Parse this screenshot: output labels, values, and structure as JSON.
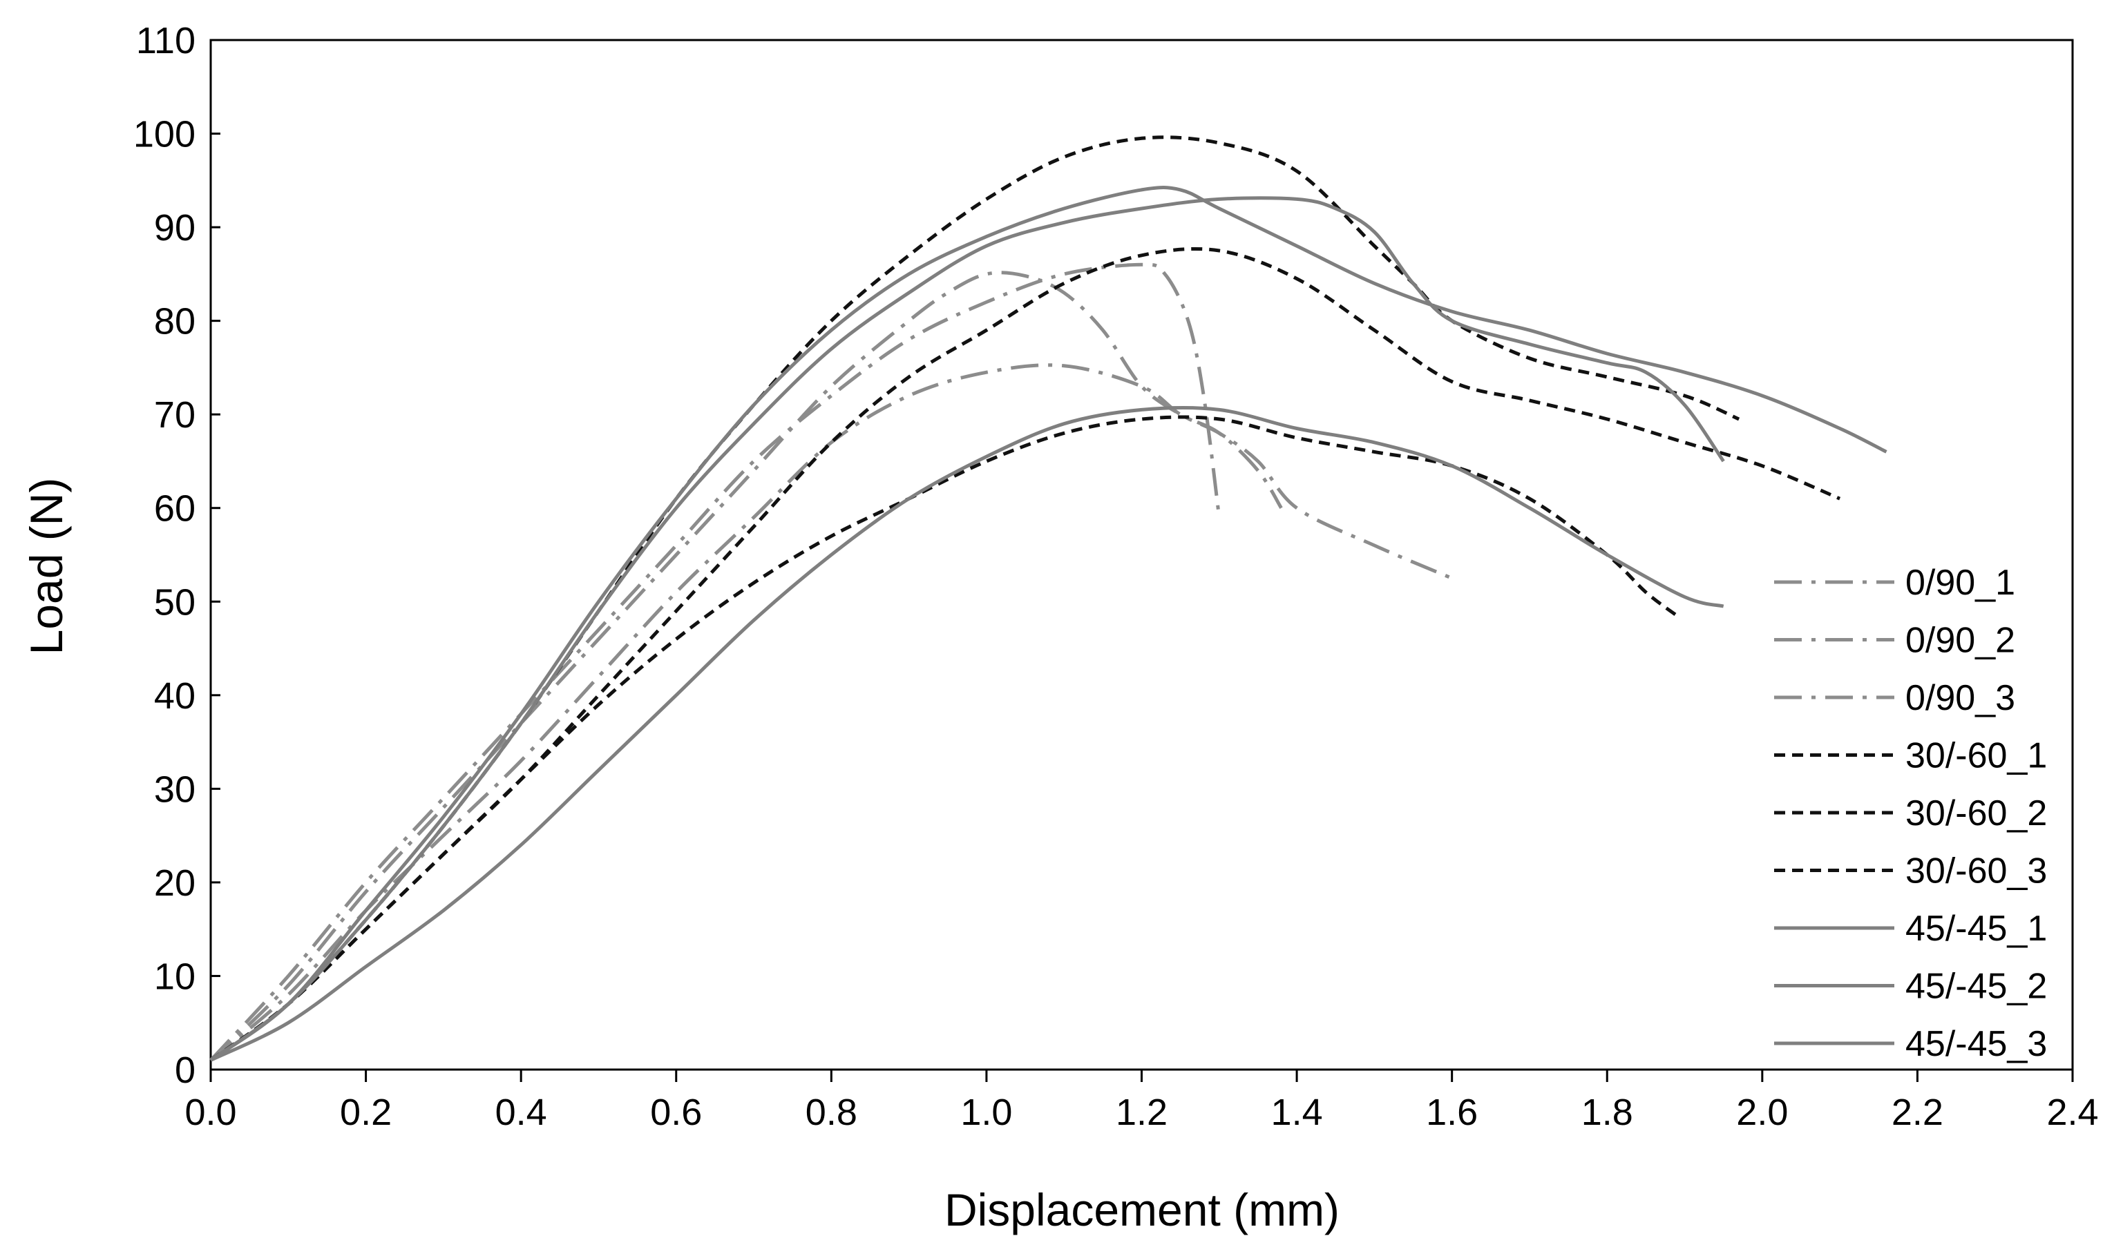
{
  "chart_data": {
    "type": "line",
    "title": "",
    "xlabel": "Displacement (mm)",
    "ylabel": "Load (N)",
    "xlim": [
      0,
      2.4
    ],
    "ylim": [
      0,
      110
    ],
    "xticks": [
      0.0,
      0.2,
      0.4,
      0.6,
      0.8,
      1.0,
      1.2,
      1.4,
      1.6,
      1.8,
      2.0,
      2.2,
      2.4
    ],
    "xtick_labels": [
      "0.0",
      "0.2",
      "0.4",
      "0.6",
      "0.8",
      "1.0",
      "1.2",
      "1.4",
      "1.6",
      "1.8",
      "2.0",
      "2.2",
      "2.4"
    ],
    "yticks": [
      0,
      10,
      20,
      30,
      40,
      50,
      60,
      70,
      80,
      90,
      100,
      110
    ],
    "ytick_labels": [
      "0",
      "10",
      "20",
      "30",
      "40",
      "50",
      "60",
      "70",
      "80",
      "90",
      "100",
      "110"
    ],
    "grid": false,
    "legend_position": "right",
    "series": [
      {
        "name": "0/90_1",
        "color": "#8c8c8c",
        "style": "dashdot",
        "x": [
          0.0,
          0.1,
          0.2,
          0.3,
          0.4,
          0.5,
          0.6,
          0.7,
          0.8,
          0.9,
          1.0,
          1.1,
          1.2,
          1.25,
          1.3,
          1.35,
          1.4,
          1.5,
          1.6
        ],
        "y": [
          1,
          8,
          17,
          25,
          33,
          42,
          51,
          59,
          67,
          72,
          74.5,
          75.2,
          73,
          70,
          68,
          65,
          60,
          56,
          52.5
        ]
      },
      {
        "name": "0/90_2",
        "color": "#8c8c8c",
        "style": "dashdot",
        "x": [
          0.0,
          0.1,
          0.2,
          0.3,
          0.4,
          0.5,
          0.6,
          0.7,
          0.8,
          0.9,
          0.95,
          1.0,
          1.05,
          1.1,
          1.15,
          1.2,
          1.25,
          1.3,
          1.35,
          1.38
        ],
        "y": [
          1,
          9,
          19,
          28,
          37,
          46,
          55,
          64,
          73,
          80,
          83,
          85,
          84.8,
          83,
          79,
          73,
          70,
          68,
          64,
          60
        ]
      },
      {
        "name": "0/90_3",
        "color": "#8c8c8c",
        "style": "dashdot",
        "x": [
          0.0,
          0.1,
          0.2,
          0.3,
          0.4,
          0.5,
          0.6,
          0.7,
          0.8,
          0.9,
          1.0,
          1.1,
          1.2,
          1.23,
          1.26,
          1.28,
          1.3
        ],
        "y": [
          1,
          10,
          20,
          29,
          38,
          47,
          56,
          65,
          72,
          78,
          82,
          85,
          86,
          85,
          80,
          72,
          59
        ]
      },
      {
        "name": "30/-60_1",
        "color": "#111111",
        "style": "dashed",
        "x": [
          0.0,
          0.1,
          0.2,
          0.3,
          0.4,
          0.5,
          0.6,
          0.7,
          0.8,
          0.9,
          1.0,
          1.1,
          1.2,
          1.3,
          1.4,
          1.5,
          1.55,
          1.6,
          1.7,
          1.8,
          1.9,
          1.97
        ],
        "y": [
          1,
          7,
          16,
          26,
          37,
          49,
          61,
          71,
          80,
          87,
          93,
          97.5,
          99.5,
          99,
          96,
          88,
          84,
          80,
          76,
          74,
          72,
          69.5
        ]
      },
      {
        "name": "30/-60_2",
        "color": "#111111",
        "style": "dashed",
        "x": [
          0.0,
          0.1,
          0.2,
          0.3,
          0.4,
          0.5,
          0.6,
          0.7,
          0.8,
          0.9,
          1.0,
          1.1,
          1.2,
          1.3,
          1.4,
          1.5,
          1.6,
          1.7,
          1.8,
          1.9,
          2.0,
          2.1
        ],
        "y": [
          1,
          7,
          15,
          23,
          31,
          40,
          49,
          58,
          67,
          74,
          79,
          84,
          87,
          87.5,
          84.5,
          79,
          73.5,
          71.5,
          69.5,
          67,
          64.5,
          61
        ]
      },
      {
        "name": "30/-60_3",
        "color": "#111111",
        "style": "dashed",
        "x": [
          0.0,
          0.1,
          0.2,
          0.3,
          0.4,
          0.5,
          0.6,
          0.7,
          0.8,
          0.9,
          1.0,
          1.1,
          1.2,
          1.3,
          1.4,
          1.5,
          1.6,
          1.7,
          1.8,
          1.85,
          1.89
        ],
        "y": [
          1,
          7,
          15,
          23,
          31,
          39,
          46,
          52,
          57,
          61,
          65,
          68,
          69.5,
          69.5,
          67.5,
          66,
          64.5,
          61,
          55,
          51,
          48.5
        ]
      },
      {
        "name": "45/-45_1",
        "color": "#7f7f7f",
        "style": "solid",
        "x": [
          0.0,
          0.1,
          0.2,
          0.3,
          0.4,
          0.5,
          0.6,
          0.7,
          0.8,
          0.9,
          1.0,
          1.1,
          1.2,
          1.25,
          1.3,
          1.4,
          1.5,
          1.6,
          1.7,
          1.8,
          1.9,
          2.0,
          2.1,
          2.16
        ],
        "y": [
          1,
          7,
          17,
          27,
          38,
          50,
          61,
          71,
          79,
          85,
          89,
          92,
          94,
          94,
          92,
          88,
          84,
          81,
          79,
          76.5,
          74.5,
          72,
          68.5,
          66
        ]
      },
      {
        "name": "45/-45_2",
        "color": "#7f7f7f",
        "style": "solid",
        "x": [
          0.0,
          0.1,
          0.2,
          0.3,
          0.4,
          0.5,
          0.6,
          0.7,
          0.8,
          0.9,
          1.0,
          1.1,
          1.2,
          1.3,
          1.4,
          1.45,
          1.5,
          1.55,
          1.6,
          1.7,
          1.8,
          1.85,
          1.9,
          1.95
        ],
        "y": [
          1,
          7,
          16,
          26,
          37,
          49,
          60,
          69,
          77,
          83,
          88,
          90.5,
          92,
          93,
          93,
          92,
          89.5,
          84,
          80,
          77.5,
          75.5,
          74.5,
          71,
          65
        ]
      },
      {
        "name": "45/-45_3",
        "color": "#7f7f7f",
        "style": "solid",
        "x": [
          0.0,
          0.1,
          0.2,
          0.3,
          0.4,
          0.5,
          0.6,
          0.7,
          0.8,
          0.9,
          1.0,
          1.1,
          1.2,
          1.3,
          1.4,
          1.5,
          1.6,
          1.7,
          1.8,
          1.9,
          1.95
        ],
        "y": [
          1,
          5,
          11,
          17,
          24,
          32,
          40,
          48,
          55,
          61,
          65.5,
          69,
          70.5,
          70.5,
          68.5,
          67,
          64.5,
          60,
          55,
          50.5,
          49.5
        ]
      }
    ]
  }
}
